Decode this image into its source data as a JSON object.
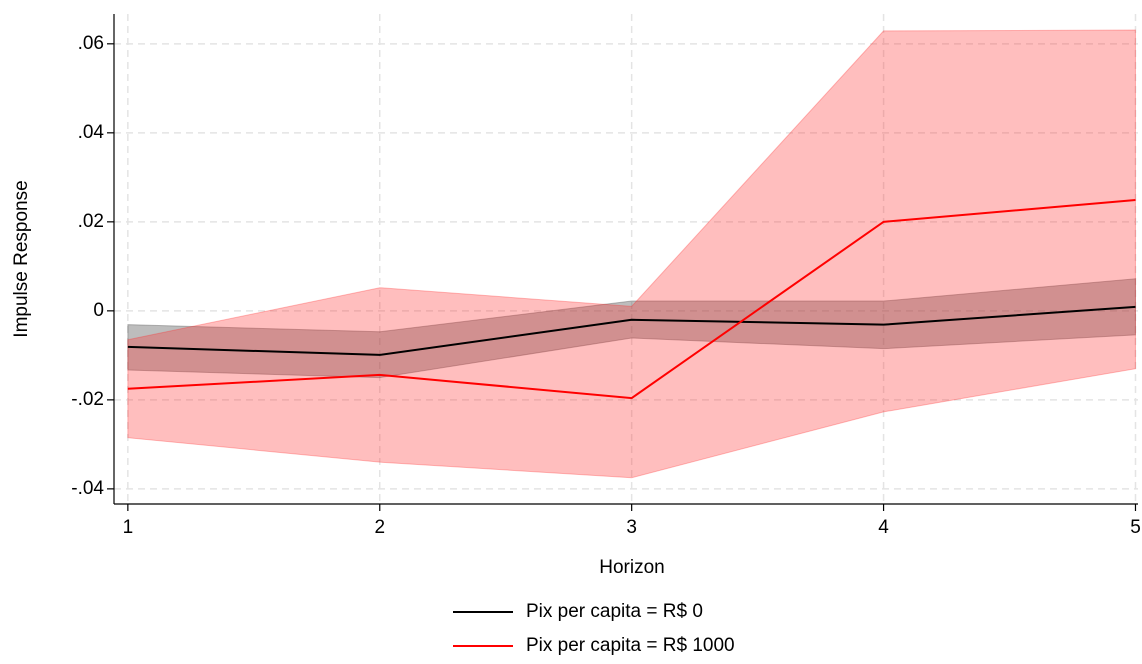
{
  "chart_data": {
    "type": "line",
    "x_label": "Horizon",
    "y_label": "Impulse Response",
    "x": [
      1,
      2,
      3,
      4,
      5
    ],
    "xlim": [
      0.945,
      5.01
    ],
    "xticks": [
      1,
      2,
      3,
      4,
      5
    ],
    "ylim": [
      -0.0434,
      0.0667
    ],
    "yticks": [
      {
        "value": -0.04,
        "label": "-.04"
      },
      {
        "value": -0.02,
        "label": "-.02"
      },
      0,
      {
        "value": 0.02,
        "label": ".02"
      },
      {
        "value": 0.04,
        "label": ".04"
      },
      {
        "value": 0.06,
        "label": ".06"
      }
    ],
    "grid": true,
    "series": [
      {
        "name": "Pix per capita = R$ 0",
        "color": "#000000",
        "band_color": "rgba(90,90,90,0.4)",
        "values": [
          -0.0081,
          -0.0099,
          -0.002,
          -0.0031,
          0.0009
        ],
        "upper": [
          -0.0031,
          -0.0047,
          0.0022,
          0.0022,
          0.0072
        ],
        "lower": [
          -0.0133,
          -0.015,
          -0.0061,
          -0.0085,
          -0.0054
        ]
      },
      {
        "name": "Pix per capita = R$ 1000",
        "color": "#ff0000",
        "band_color": "rgba(255,40,40,0.3)",
        "values": [
          -0.0175,
          -0.0144,
          -0.0196,
          0.02,
          0.0249
        ],
        "upper": [
          -0.0065,
          0.0052,
          0.001,
          0.0629,
          0.0631
        ],
        "lower": [
          -0.0285,
          -0.034,
          -0.0375,
          -0.0227,
          -0.013
        ]
      }
    ]
  }
}
